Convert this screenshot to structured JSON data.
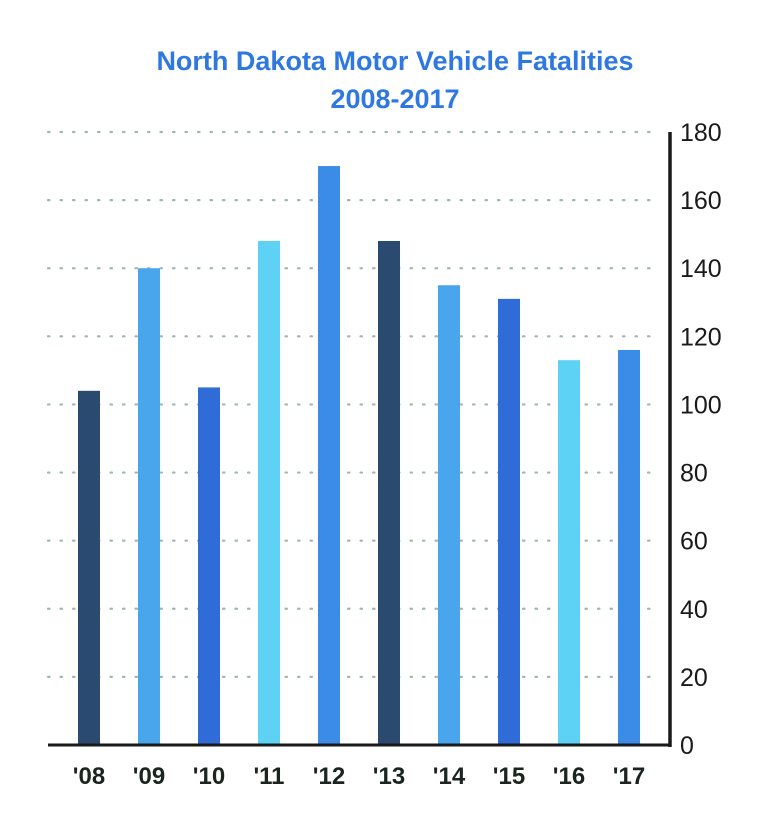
{
  "chart_data": {
    "type": "bar",
    "title": "North Dakota Motor Vehicle Fatalities",
    "subtitle": "2008-2017",
    "xlabel": "",
    "ylabel": "",
    "categories": [
      "'08",
      "'09",
      "'10",
      "'11",
      "'12",
      "'13",
      "'14",
      "'15",
      "'16",
      "'17"
    ],
    "values": [
      104,
      140,
      105,
      148,
      170,
      148,
      135,
      131,
      113,
      116
    ],
    "bar_colors": [
      "#2b4a6f",
      "#4aa6ec",
      "#2f6cd8",
      "#5dd2f4",
      "#3b8ce6",
      "#2b4a6f",
      "#4aa6ec",
      "#2f6cd8",
      "#5dd2f4",
      "#3b8ce6"
    ],
    "ylim": [
      0,
      180
    ],
    "yticks": [
      0,
      20,
      40,
      60,
      80,
      100,
      120,
      140,
      160,
      180
    ],
    "ytick_labels": [
      "0",
      "20",
      "40",
      "60",
      "80",
      "100",
      "120",
      "140",
      "160",
      "180"
    ],
    "y_axis_side": "right",
    "grid": true,
    "legend": "none",
    "title_color": "#2f78e0"
  }
}
